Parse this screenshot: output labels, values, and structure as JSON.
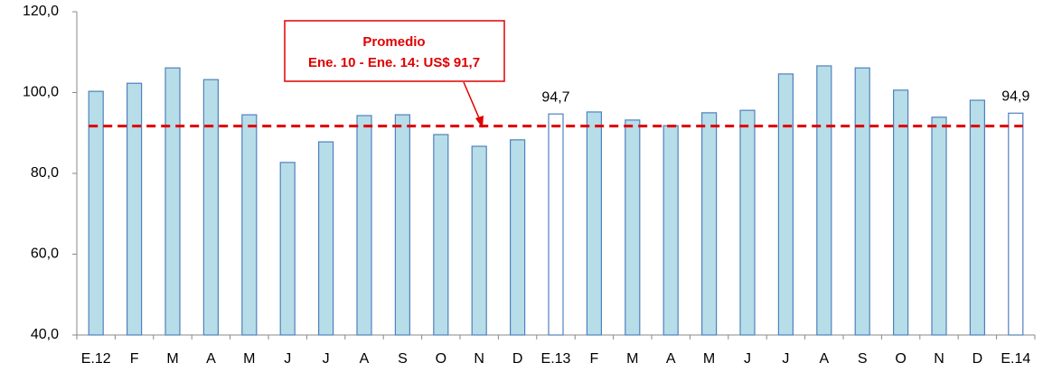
{
  "chart_data": {
    "type": "bar",
    "categories": [
      "E.12",
      "F",
      "M",
      "A",
      "M",
      "J",
      "J",
      "A",
      "S",
      "O",
      "N",
      "D",
      "E.13",
      "F",
      "M",
      "A",
      "M",
      "J",
      "J",
      "A",
      "S",
      "O",
      "N",
      "D",
      "E.14"
    ],
    "values": [
      100.3,
      102.3,
      106.1,
      103.2,
      94.5,
      82.7,
      87.8,
      94.3,
      94.5,
      89.6,
      86.7,
      88.3,
      94.7,
      95.2,
      93.2,
      91.8,
      95.0,
      95.6,
      104.6,
      106.6,
      106.1,
      100.6,
      93.9,
      98.1,
      94.9
    ],
    "value_labels": [
      null,
      null,
      null,
      null,
      null,
      null,
      null,
      null,
      null,
      null,
      null,
      null,
      "94,7",
      null,
      null,
      null,
      null,
      null,
      null,
      null,
      null,
      null,
      null,
      null,
      "94,9"
    ],
    "colors": [
      "#b7dde8",
      "#b7dde8",
      "#b7dde8",
      "#b7dde8",
      "#b7dde8",
      "#b7dde8",
      "#b7dde8",
      "#b7dde8",
      "#b7dde8",
      "#b7dde8",
      "#b7dde8",
      "#b7dde8",
      "#ffffff",
      "#b7dde8",
      "#b7dde8",
      "#b7dde8",
      "#b7dde8",
      "#b7dde8",
      "#b7dde8",
      "#b7dde8",
      "#b7dde8",
      "#b7dde8",
      "#b7dde8",
      "#b7dde8",
      "#ffffff"
    ],
    "edge_color": "#4f81bd",
    "ylim": [
      40,
      120
    ],
    "yticks": [
      {
        "value": 40,
        "label": "40,0"
      },
      {
        "value": 60,
        "label": "60,0"
      },
      {
        "value": 80,
        "label": "80,0"
      },
      {
        "value": 100,
        "label": "100,0"
      },
      {
        "value": 120,
        "label": "120,0"
      }
    ],
    "average": {
      "value": 91.7,
      "color": "#e00000",
      "label_lines": [
        "Promedio",
        "Ene. 10 - Ene. 14: US$ 91,7"
      ]
    }
  }
}
